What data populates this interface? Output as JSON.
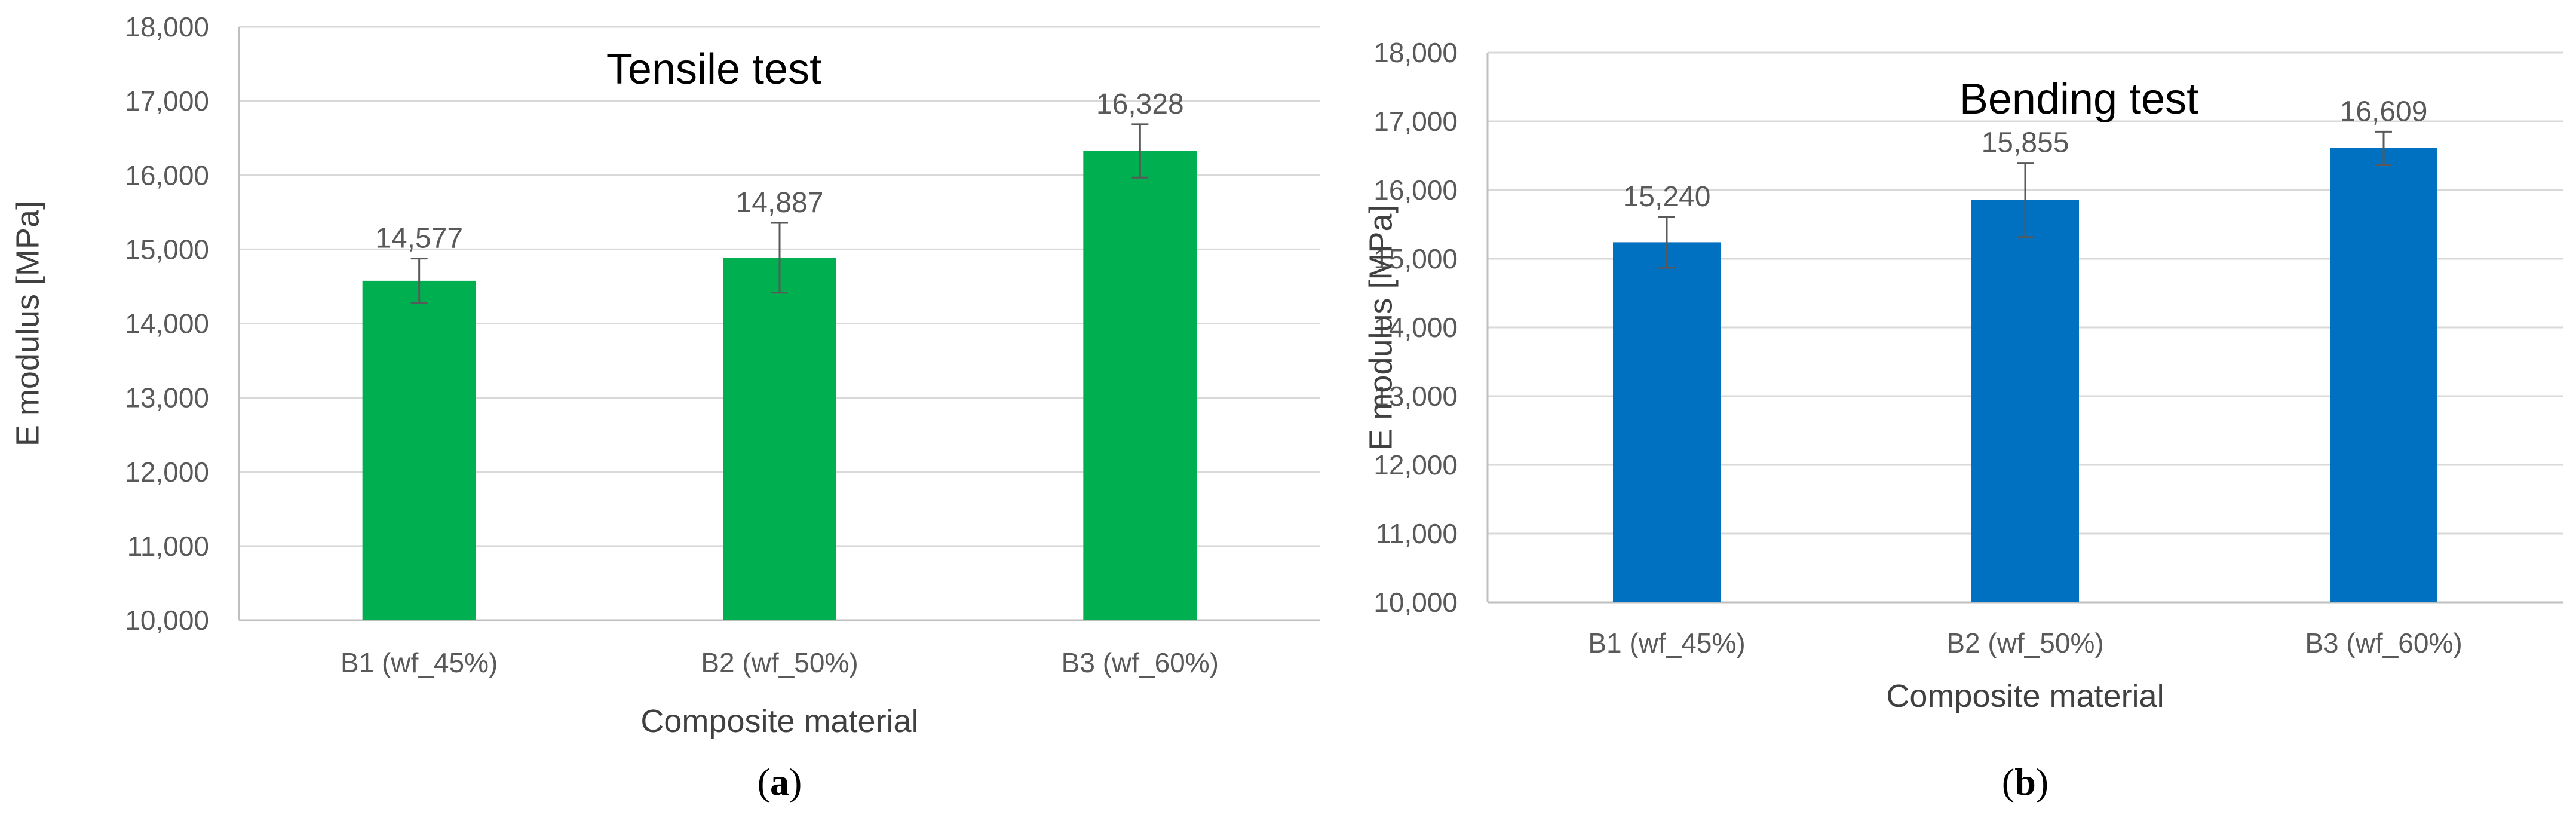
{
  "chart_data": [
    {
      "type": "bar",
      "title": "Tensile test",
      "xlabel": "Composite material",
      "ylabel": "E  modulus [MPa]",
      "categories": [
        "B1 (wf_45%)",
        "B2 (wf_50%)",
        "B3 (wf_60%)"
      ],
      "values": [
        14577,
        14887,
        16328
      ],
      "value_labels": [
        "14,577",
        "14,887",
        "16,328"
      ],
      "error": [
        300,
        470,
        360
      ],
      "ylim": [
        10000,
        18000
      ],
      "yticks": [
        10000,
        11000,
        12000,
        13000,
        14000,
        15000,
        16000,
        17000,
        18000
      ],
      "ytick_labels": [
        "10,000",
        "11,000",
        "12,000",
        "13,000",
        "14,000",
        "15,000",
        "16,000",
        "17,000",
        "18,000"
      ],
      "grid": true,
      "bar_color": "#00b050",
      "panel_label": "a"
    },
    {
      "type": "bar",
      "title": "Bending test",
      "xlabel": "Composite material",
      "ylabel": "E  modulus [MPa]",
      "categories": [
        "B1 (wf_45%)",
        "B2 (wf_50%)",
        "B3 (wf_60%)"
      ],
      "values": [
        15240,
        15855,
        16609
      ],
      "value_labels": [
        "15,240",
        "15,855",
        "16,609"
      ],
      "error": [
        370,
        540,
        240
      ],
      "ylim": [
        10000,
        18000
      ],
      "yticks": [
        10000,
        11000,
        12000,
        13000,
        14000,
        15000,
        16000,
        17000,
        18000
      ],
      "ytick_labels": [
        "10,000",
        "11,000",
        "12,000",
        "13,000",
        "14,000",
        "15,000",
        "16,000",
        "17,000",
        "18,000"
      ],
      "grid": true,
      "bar_color": "#0070c0",
      "panel_label": "b"
    }
  ]
}
